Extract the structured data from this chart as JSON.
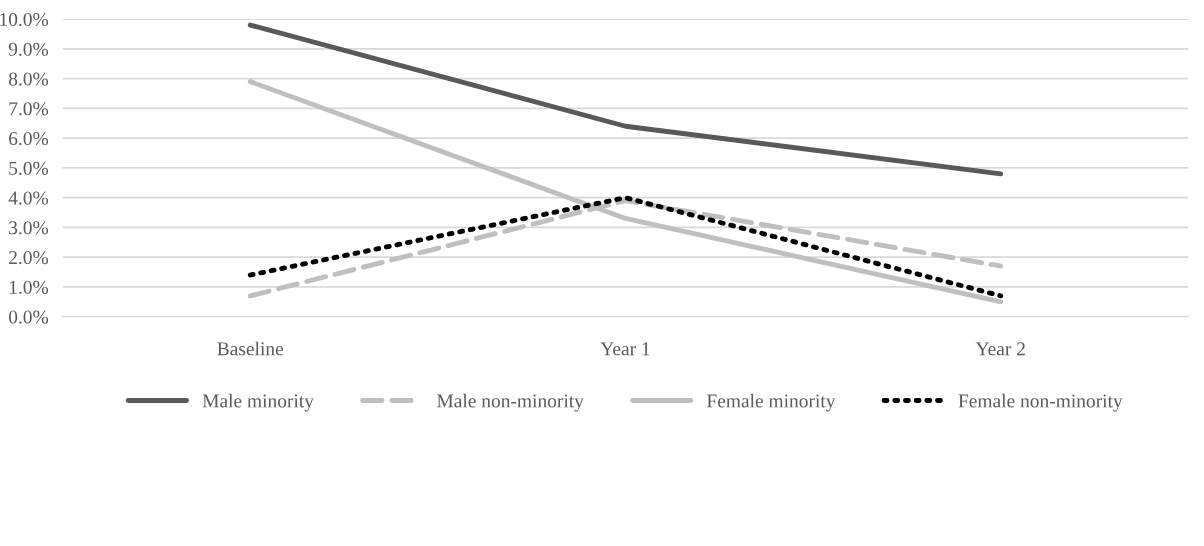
{
  "chart_data": {
    "type": "line",
    "categories": [
      "Baseline",
      "Year 1",
      "Year 2"
    ],
    "series": [
      {
        "name": "Male minority",
        "color": "#595959",
        "line_style": "solid",
        "values": [
          9.8,
          6.4,
          4.8
        ]
      },
      {
        "name": "Male non-minority",
        "color": "#bfbfbf",
        "line_style": "dashed",
        "values": [
          0.7,
          3.9,
          1.7
        ]
      },
      {
        "name": "Female minority",
        "color": "#bfbfbf",
        "line_style": "solid",
        "values": [
          7.9,
          3.3,
          0.5
        ]
      },
      {
        "name": "Female non-minority",
        "color": "#000000",
        "line_style": "dotted",
        "values": [
          1.4,
          4.0,
          0.7
        ]
      }
    ],
    "ylim": [
      0,
      10
    ],
    "yticks": [
      {
        "value": 0,
        "label": "0.0%"
      },
      {
        "value": 1,
        "label": "1.0%"
      },
      {
        "value": 2,
        "label": "2.0%"
      },
      {
        "value": 3,
        "label": "3.0%"
      },
      {
        "value": 4,
        "label": "4.0%"
      },
      {
        "value": 5,
        "label": "5.0%"
      },
      {
        "value": 6,
        "label": "6.0%"
      },
      {
        "value": 7,
        "label": "7.0%"
      },
      {
        "value": 8,
        "label": "8.0%"
      },
      {
        "value": 9,
        "label": "9.0%"
      },
      {
        "value": 10,
        "label": "10.0%"
      }
    ],
    "grid": "y",
    "legend": "bottom",
    "marker": "none"
  }
}
